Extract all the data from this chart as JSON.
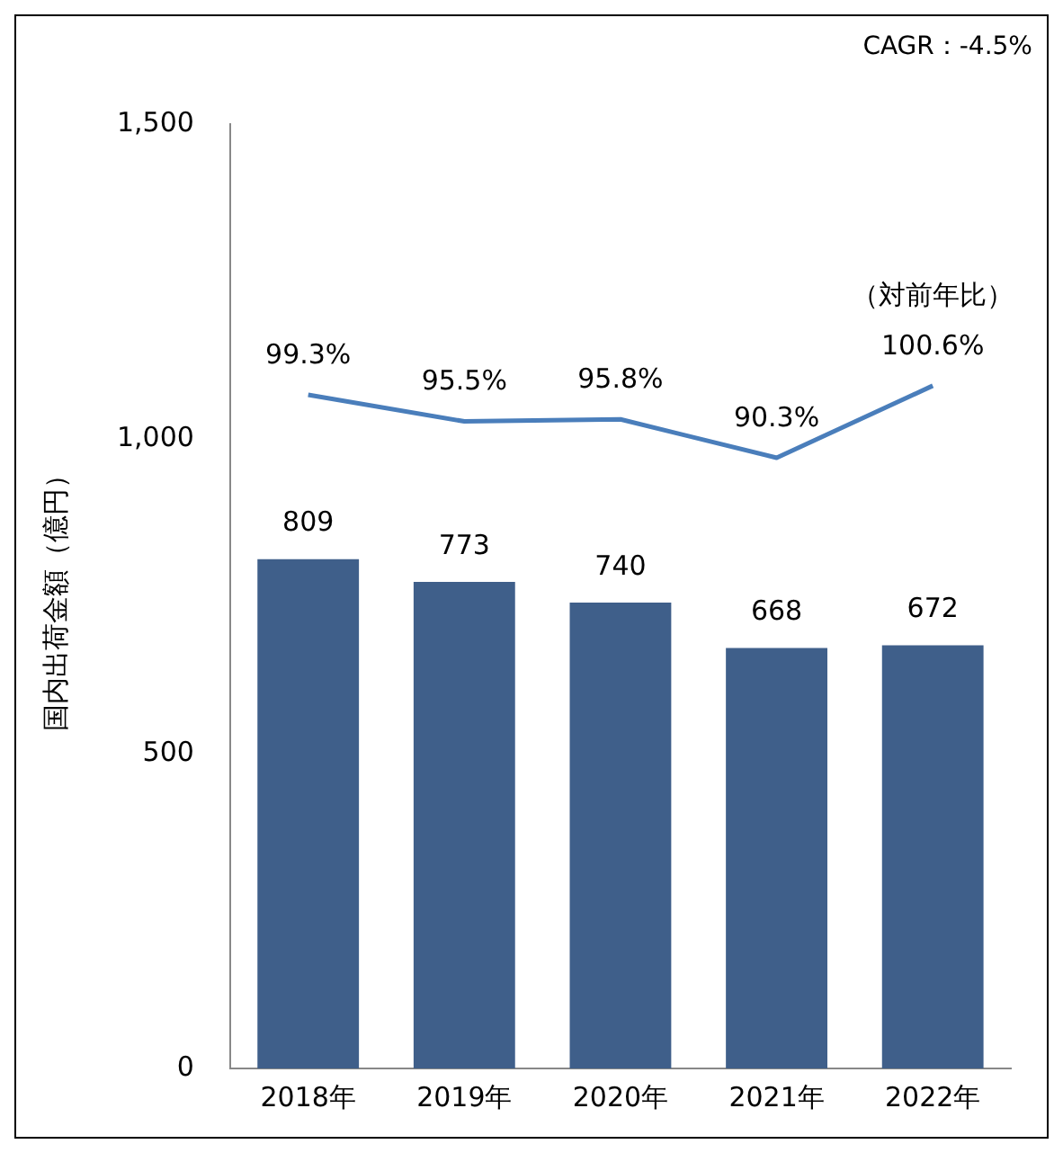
{
  "chart_data": {
    "type": "bar",
    "ylabel": "国内出荷金額（億円）",
    "categories": [
      "2018年",
      "2019年",
      "2020年",
      "2021年",
      "2022年"
    ],
    "series": [
      {
        "color": "#3f5f8a",
        "values": [
          809,
          773,
          740,
          668,
          672
        ]
      },
      {
        "type": "line",
        "name": "（対前年比）",
        "axis": "y2",
        "color": "#4a7ebb",
        "values": [
          99.3,
          95.5,
          95.8,
          90.3,
          100.6
        ],
        "value_labels": [
          "99.3%",
          "95.5%",
          "95.8%",
          "90.3%",
          "100.6%"
        ]
      }
    ],
    "ylim": [
      0,
      1500
    ],
    "yticks": [
      {
        "value": 0,
        "label": "0"
      },
      {
        "value": 500,
        "label": "500"
      },
      {
        "value": 1000,
        "label": "1,000"
      },
      {
        "value": 1500,
        "label": "1,500"
      }
    ],
    "y2lim": [
      3,
      138
    ],
    "data_labels": true,
    "grid": false,
    "legend": false,
    "marker": "none",
    "annotations": [
      "CAGR：-4.5%"
    ]
  }
}
